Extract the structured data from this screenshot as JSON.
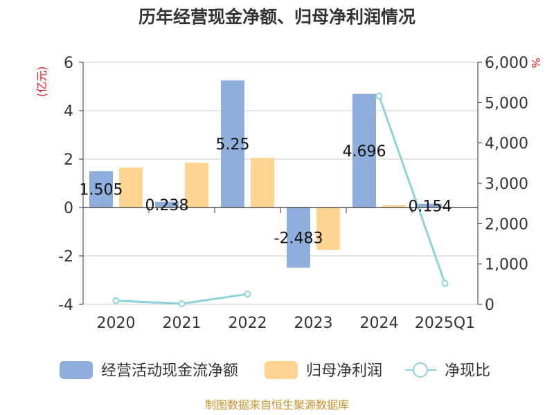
{
  "chart_data": {
    "type": "bar",
    "title": "历年经营现金净额、归母净利润情况",
    "categories": [
      "2020",
      "2021",
      "2022",
      "2023",
      "2024",
      "2025Q1"
    ],
    "series": [
      {
        "name": "经营活动现金流净额",
        "kind": "bar",
        "axis": "left",
        "color": "#8eaedb",
        "values": [
          1.505,
          0.238,
          5.25,
          -2.483,
          4.696,
          0.154
        ]
      },
      {
        "name": "归母净利润",
        "kind": "bar",
        "axis": "left",
        "color": "#ffd591",
        "values": [
          1.65,
          1.85,
          2.05,
          -1.75,
          0.1,
          0.02
        ]
      },
      {
        "name": "净现比",
        "kind": "line",
        "axis": "right",
        "color": "#8dd3d8",
        "values": [
          90,
          15,
          255,
          null,
          5160,
          520
        ]
      }
    ],
    "data_labels": [
      "1.505",
      "0.238",
      "5.25",
      "-2.483",
      "4.696",
      "0.154"
    ],
    "left_axis": {
      "unit": "(亿元)",
      "ylim": [
        -4,
        6
      ],
      "ticks": [
        "-4",
        "-2",
        "0",
        "2",
        "4",
        "6"
      ]
    },
    "right_axis": {
      "unit": "%",
      "ylim": [
        0,
        6000
      ],
      "ticks": [
        "0",
        "1,000",
        "2,000",
        "3,000",
        "4,000",
        "5,000",
        "6,000"
      ]
    },
    "grid": true,
    "legend_position": "bottom"
  },
  "source": "制图数据来自恒生聚源数据库"
}
